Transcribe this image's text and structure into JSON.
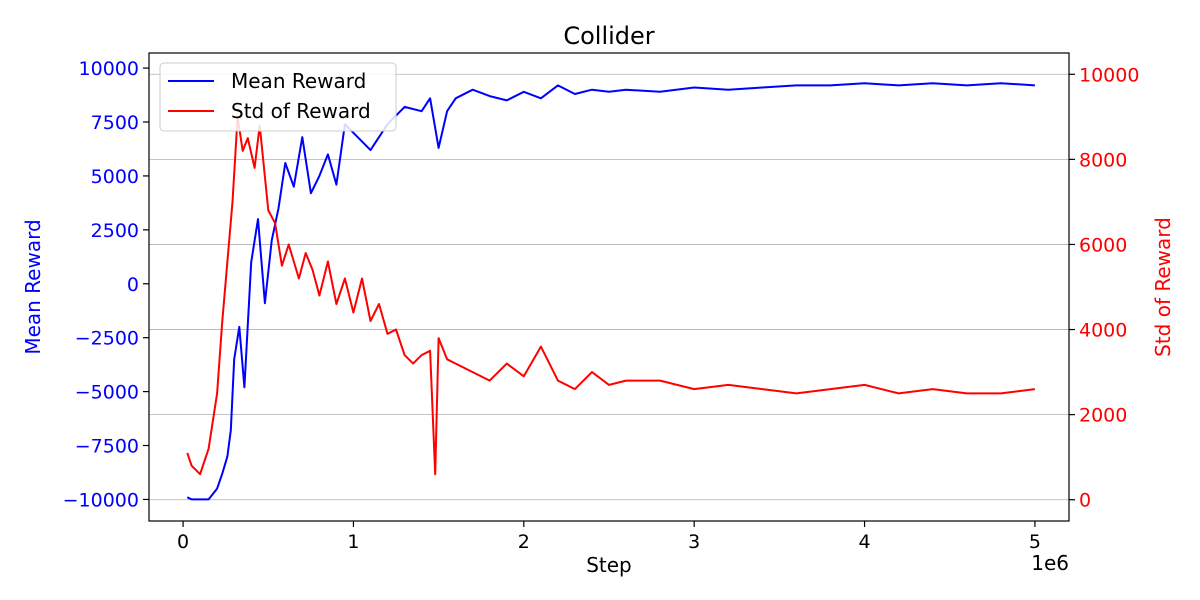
{
  "chart_data": {
    "type": "line",
    "title": "Collider",
    "xlabel": "Step",
    "x_offset_label": "1e6",
    "xlim": [
      -200000,
      5200000
    ],
    "x_ticks": [
      0,
      1000000,
      2000000,
      3000000,
      4000000,
      5000000
    ],
    "x_tick_labels": [
      "0",
      "1",
      "2",
      "3",
      "4",
      "5"
    ],
    "left_axis": {
      "label": "Mean Reward",
      "color": "#0000ff",
      "ylim": [
        -11000,
        10700
      ],
      "ticks": [
        -10000,
        -7500,
        -5000,
        -2500,
        0,
        2500,
        5000,
        7500,
        10000
      ],
      "tick_labels": [
        "−10000",
        "−7500",
        "−5000",
        "−2500",
        "0",
        "2500",
        "5000",
        "7500",
        "10000"
      ]
    },
    "right_axis": {
      "label": "Std of Reward",
      "color": "#ff0000",
      "ylim": [
        -500,
        10500
      ],
      "ticks": [
        0,
        2000,
        4000,
        6000,
        8000,
        10000
      ],
      "tick_labels": [
        "0",
        "2000",
        "4000",
        "6000",
        "8000",
        "10000"
      ]
    },
    "grid": "horizontal lines at right-axis ticks",
    "legend_position": "top-left",
    "series": [
      {
        "name": "Mean Reward",
        "axis": "left",
        "color": "#0000ff",
        "x": [
          25000,
          50000,
          100000,
          150000,
          200000,
          230000,
          260000,
          280000,
          300000,
          330000,
          360000,
          400000,
          440000,
          480000,
          520000,
          560000,
          600000,
          650000,
          700000,
          750000,
          800000,
          850000,
          900000,
          950000,
          1000000,
          1100000,
          1200000,
          1300000,
          1400000,
          1450000,
          1500000,
          1550000,
          1600000,
          1700000,
          1800000,
          1900000,
          2000000,
          2100000,
          2200000,
          2300000,
          2400000,
          2500000,
          2600000,
          2800000,
          3000000,
          3200000,
          3400000,
          3600000,
          3800000,
          4000000,
          4200000,
          4400000,
          4600000,
          4800000,
          5000000
        ],
        "y": [
          -9900,
          -10000,
          -10000,
          -10000,
          -9500,
          -8800,
          -8000,
          -6800,
          -3500,
          -2000,
          -4800,
          1000,
          3000,
          -900,
          2000,
          3500,
          5600,
          4500,
          6800,
          4200,
          5000,
          6000,
          4600,
          7400,
          7000,
          6200,
          7400,
          8200,
          8000,
          8600,
          6300,
          8000,
          8600,
          9000,
          8700,
          8500,
          8900,
          8600,
          9200,
          8800,
          9000,
          8900,
          9000,
          8900,
          9100,
          9000,
          9100,
          9200,
          9200,
          9300,
          9200,
          9300,
          9200,
          9300,
          9200
        ]
      },
      {
        "name": "Std of Reward",
        "axis": "right",
        "color": "#ff0000",
        "x": [
          25000,
          50000,
          100000,
          150000,
          200000,
          230000,
          260000,
          290000,
          320000,
          350000,
          380000,
          420000,
          450000,
          500000,
          540000,
          580000,
          620000,
          680000,
          720000,
          760000,
          800000,
          850000,
          900000,
          950000,
          1000000,
          1050000,
          1100000,
          1150000,
          1200000,
          1250000,
          1300000,
          1350000,
          1400000,
          1450000,
          1480000,
          1500000,
          1550000,
          1600000,
          1700000,
          1800000,
          1900000,
          2000000,
          2100000,
          2200000,
          2300000,
          2400000,
          2500000,
          2600000,
          2800000,
          3000000,
          3200000,
          3400000,
          3600000,
          3800000,
          4000000,
          4200000,
          4400000,
          4600000,
          4800000,
          5000000
        ],
        "y": [
          1100,
          800,
          600,
          1200,
          2500,
          4200,
          5600,
          7000,
          9000,
          8200,
          8500,
          7800,
          8800,
          6800,
          6500,
          5500,
          6000,
          5200,
          5800,
          5400,
          4800,
          5600,
          4600,
          5200,
          4400,
          5200,
          4200,
          4600,
          3900,
          4000,
          3400,
          3200,
          3400,
          3500,
          600,
          3800,
          3300,
          3200,
          3000,
          2800,
          3200,
          2900,
          3600,
          2800,
          2600,
          3000,
          2700,
          2800,
          2800,
          2600,
          2700,
          2600,
          2500,
          2600,
          2700,
          2500,
          2600,
          2500,
          2500,
          2600
        ]
      }
    ]
  }
}
